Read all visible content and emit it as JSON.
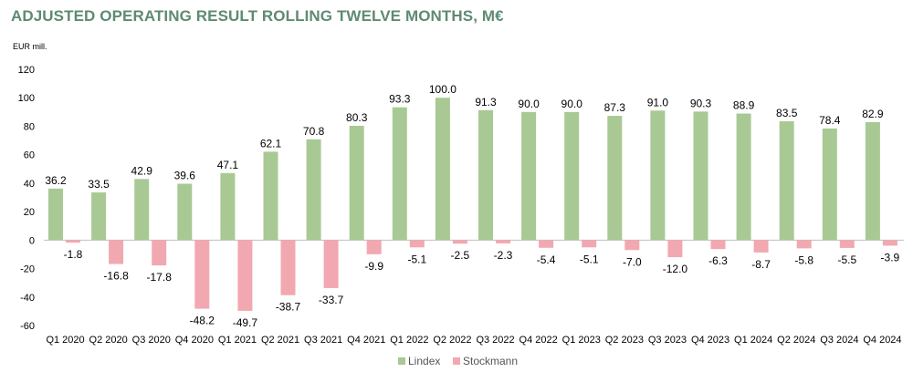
{
  "chart_data": {
    "type": "bar",
    "title": "ADJUSTED OPERATING RESULT ROLLING TWELVE MONTHS, M€",
    "ylabel": "EUR mill.",
    "xlabel": "",
    "ylim": [
      -60,
      120
    ],
    "yticks": [
      -60,
      -40,
      -20,
      0,
      20,
      40,
      60,
      80,
      100,
      120
    ],
    "grid": false,
    "legend_position": "bottom",
    "categories": [
      "Q1 2020",
      "Q2 2020",
      "Q3 2020",
      "Q4 2020",
      "Q1 2021",
      "Q2 2021",
      "Q3 2021",
      "Q4 2021",
      "Q1 2022",
      "Q2 2022",
      "Q3 2022",
      "Q4 2022",
      "Q1 2023",
      "Q2 2023",
      "Q3 2023",
      "Q4 2023",
      "Q1 2024",
      "Q2 2024",
      "Q3 2024",
      "Q4 2024"
    ],
    "series": [
      {
        "name": "Lindex",
        "color": "#a9c994",
        "values": [
          36.2,
          33.5,
          42.9,
          39.6,
          47.1,
          62.1,
          70.8,
          80.3,
          93.3,
          100.0,
          91.3,
          90.0,
          90.0,
          87.3,
          91.0,
          90.3,
          88.9,
          83.5,
          78.4,
          82.9
        ],
        "labels": [
          "36.2",
          "33.5",
          "42.9",
          "39.6",
          "47.1",
          "62.1",
          "70.8",
          "80.3",
          "93.3",
          "100.0",
          "91.3",
          "90.0",
          "90.0",
          "87.3",
          "91.0",
          "90.3",
          "88.9",
          "83.5",
          "78.4",
          "82.9"
        ]
      },
      {
        "name": "Stockmann",
        "color": "#f2a8b0",
        "values": [
          -1.8,
          -16.8,
          -17.8,
          -48.2,
          -49.7,
          -38.7,
          -33.7,
          -9.9,
          -5.1,
          -2.5,
          -2.3,
          -5.4,
          -5.1,
          -7.0,
          -12.0,
          -6.3,
          -8.7,
          -5.8,
          -5.5,
          -3.9
        ],
        "labels": [
          "-1.8",
          "-16.8",
          "-17.8",
          "-48.2",
          "-49.7",
          "-38.7",
          "-33.7",
          "-9.9",
          "-5.1",
          "-2.5",
          "-2.3",
          "-5.4",
          "-5.1",
          "-7.0",
          "-12.0",
          "-6.3",
          "-8.7",
          "-5.8",
          "-5.5",
          "-3.9"
        ]
      }
    ]
  }
}
